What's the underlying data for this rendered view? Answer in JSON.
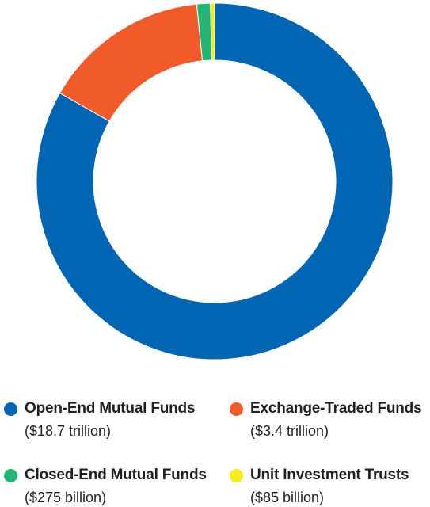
{
  "chart_data": {
    "type": "pie",
    "categories": [
      "Open-End Mutual Funds",
      "Exchange-Traded Funds",
      "Closed-End Mutual Funds",
      "Unit Investment Trusts"
    ],
    "values": [
      18.7,
      3.4,
      0.275,
      0.085
    ],
    "value_labels": [
      "($18.7 trillion)",
      "($3.4 trillion)",
      "($275 billion)",
      "($85 billion)"
    ],
    "colors": [
      "#0066b3",
      "#f15a29",
      "#22b573",
      "#f7ec13"
    ],
    "title": "",
    "legend_position": "bottom"
  }
}
